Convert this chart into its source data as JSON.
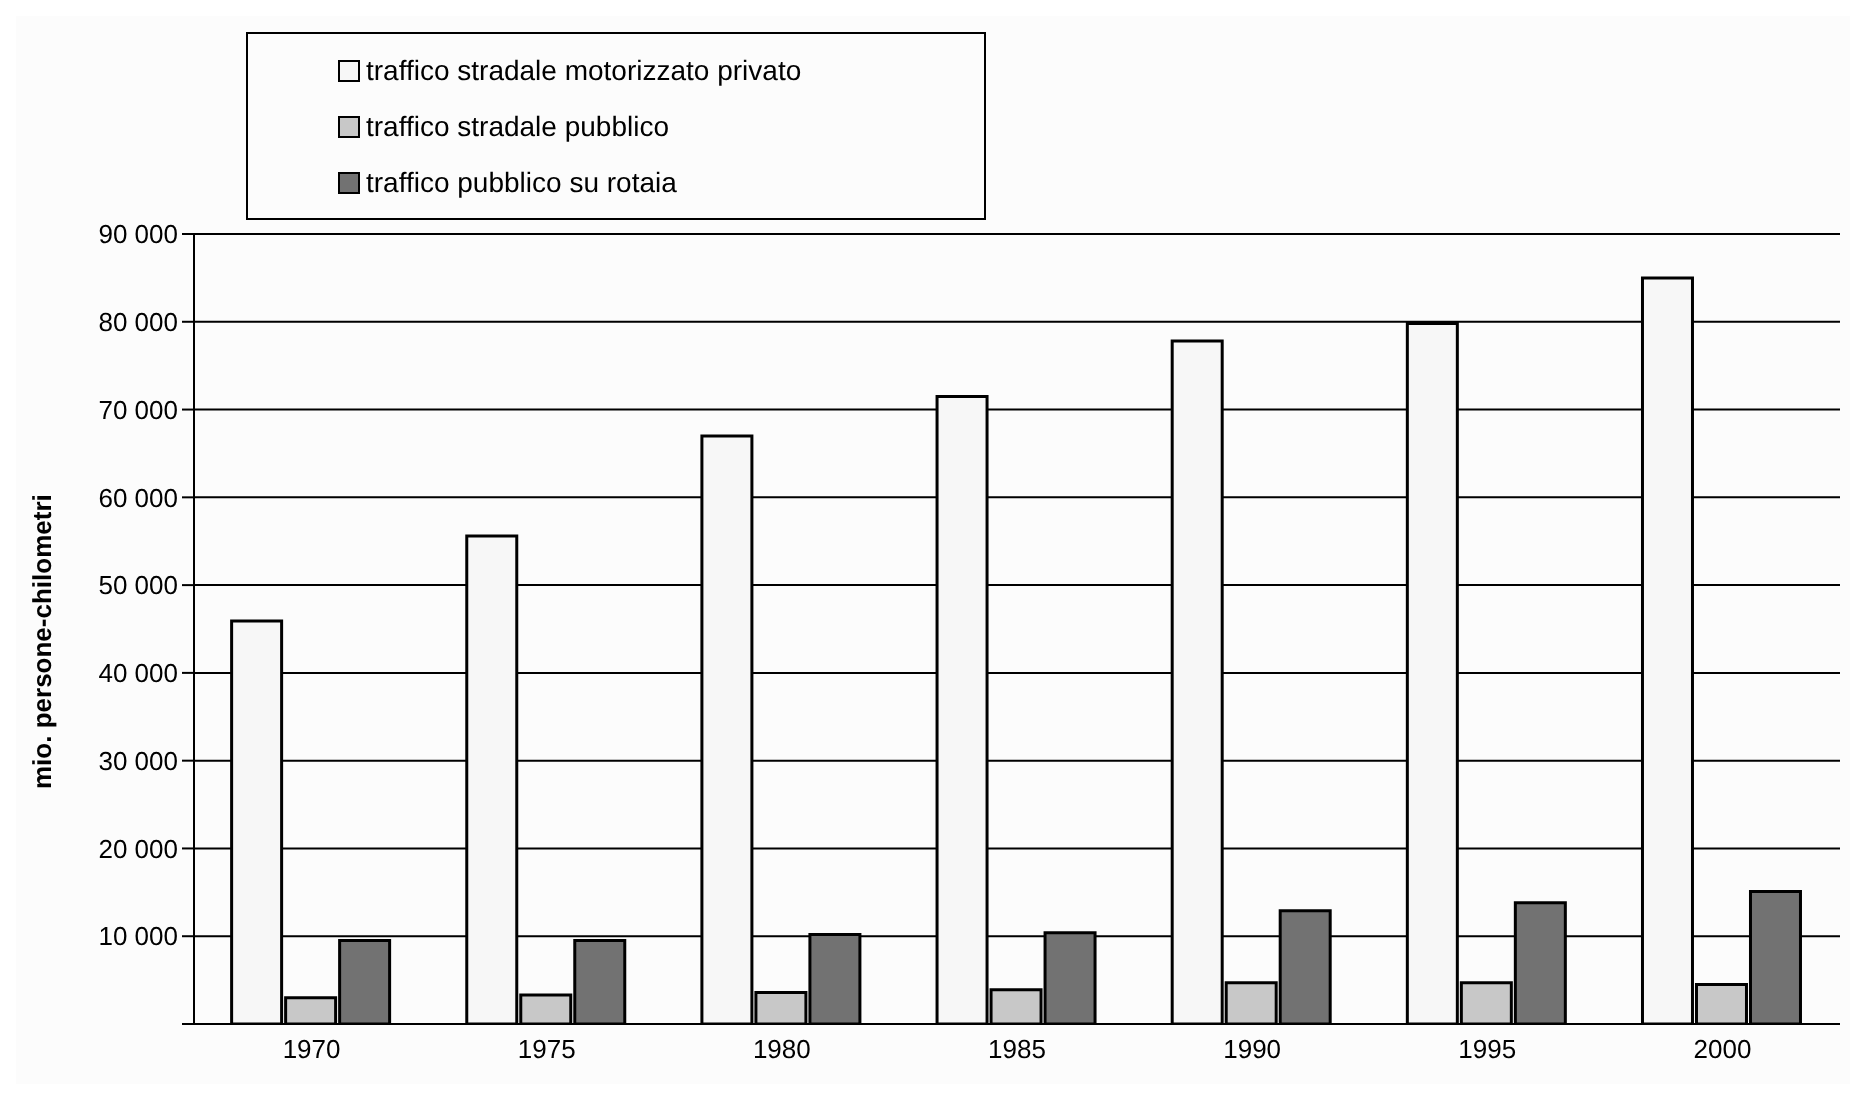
{
  "chart_data": {
    "type": "bar",
    "ylabel": "mio. persone-chilometri",
    "categories": [
      "1970",
      "1975",
      "1980",
      "1985",
      "1990",
      "1995",
      "2000"
    ],
    "series": [
      {
        "name": "traffico stradale motorizzato privato",
        "color": "#f7f7f7",
        "values": [
          45900,
          55600,
          67000,
          71500,
          77800,
          79800,
          85000
        ]
      },
      {
        "name": "traffico stradale pubblico",
        "color": "#c8c8c8",
        "values": [
          3000,
          3300,
          3600,
          3900,
          4700,
          4700,
          4500
        ]
      },
      {
        "name": "traffico pubblico su rotaia",
        "color": "#727272",
        "values": [
          9500,
          9500,
          10200,
          10400,
          12900,
          13800,
          15100
        ]
      }
    ],
    "ylim": [
      0,
      90000
    ],
    "yticks": [
      {
        "value": 0,
        "label": null
      },
      {
        "value": 10000,
        "label": "10 000"
      },
      {
        "value": 20000,
        "label": "20 000"
      },
      {
        "value": 30000,
        "label": "30 000"
      },
      {
        "value": 40000,
        "label": "40 000"
      },
      {
        "value": 50000,
        "label": "50 000"
      },
      {
        "value": 60000,
        "label": "60 000"
      },
      {
        "value": 70000,
        "label": "70 000"
      },
      {
        "value": 80000,
        "label": "80 000"
      },
      {
        "value": 90000,
        "label": "90 000"
      }
    ],
    "grid": "y",
    "legend": "top left"
  }
}
